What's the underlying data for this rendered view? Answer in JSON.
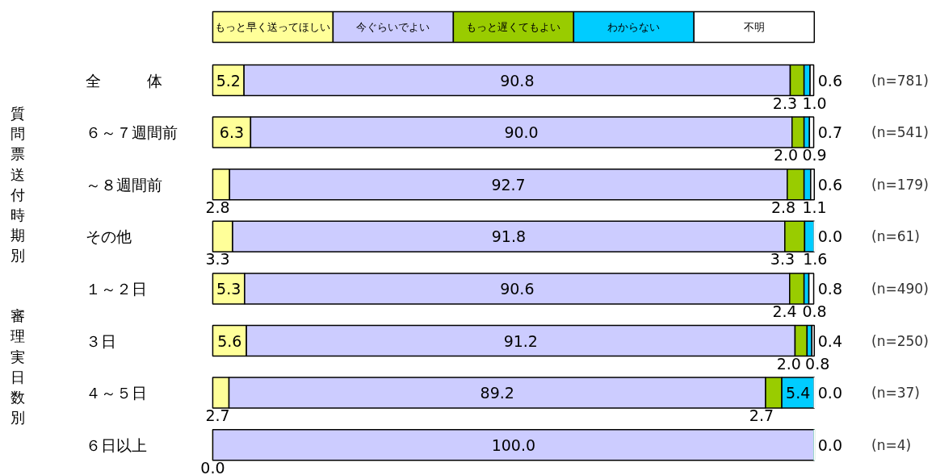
{
  "chart_data": {
    "type": "bar",
    "orientation": "horizontal",
    "stacked": true,
    "legend": "top",
    "categories": [
      "全　　　体",
      "６～７週間前",
      "～８週間前",
      "その他",
      "１～２日",
      "３日",
      "４～５日",
      "６日以上"
    ],
    "series": [
      {
        "name": "もっと早く送ってほしい",
        "color": "#ffff99",
        "values": [
          5.2,
          6.3,
          2.8,
          3.3,
          5.3,
          5.6,
          2.7,
          0.0
        ],
        "value_labels": [
          "5.2",
          "6.3",
          "2.8",
          "3.3",
          "5.3",
          "5.6",
          "2.7",
          "0.0"
        ]
      },
      {
        "name": "今ぐらいでよい",
        "color": "#ccccff",
        "values": [
          90.8,
          90.0,
          92.7,
          91.8,
          90.6,
          91.2,
          89.2,
          100.0
        ],
        "value_labels": [
          "90.8",
          "90.0",
          "92.7",
          "91.8",
          "90.6",
          "91.2",
          "89.2",
          "100.0"
        ]
      },
      {
        "name": "もっと遅くてもよい",
        "color": "#99cc00",
        "values": [
          2.3,
          2.0,
          2.8,
          3.3,
          2.4,
          2.0,
          2.7,
          0.0
        ],
        "value_labels": [
          "2.3",
          "2.0",
          "2.8",
          "3.3",
          "2.4",
          "2.0",
          "2.7",
          null
        ]
      },
      {
        "name": "わからない",
        "color": "#00ccff",
        "values": [
          1.0,
          0.9,
          1.1,
          1.6,
          0.8,
          0.8,
          5.4,
          0.0
        ],
        "value_labels": [
          "1.0",
          "0.9",
          "1.1",
          "1.6",
          "0.8",
          "0.8",
          "5.4",
          null
        ]
      },
      {
        "name": "不明",
        "color": "#ffffff",
        "values": [
          0.6,
          0.7,
          0.6,
          0.0,
          0.8,
          0.4,
          0.0,
          0.0
        ],
        "value_labels": [
          "0.6",
          "0.7",
          "0.6",
          "0.0",
          "0.8",
          "0.4",
          "0.0",
          "0.0"
        ]
      }
    ],
    "annotations": [
      "(n=781)",
      "(n=541)",
      "(n=179)",
      "(n=61)",
      "(n=490)",
      "(n=250)",
      "(n=37)",
      "(n=4)",
      "質問票送付時期別",
      "審理実日数別"
    ]
  }
}
